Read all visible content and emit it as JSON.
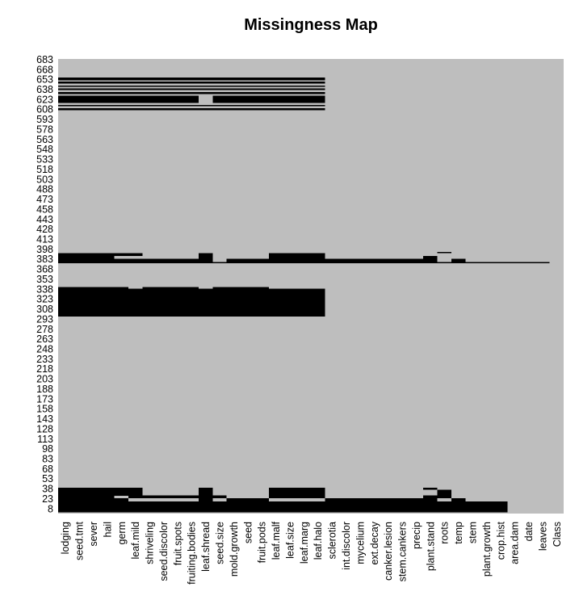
{
  "chart_data": {
    "type": "heatmap",
    "title": "Missingness Map",
    "xlabel": "",
    "ylabel": "",
    "colors": {
      "missing": "#000000",
      "observed": "#bebebe"
    },
    "columns": [
      "lodging",
      "seed.tmt",
      "sever",
      "hail",
      "germ",
      "leaf.mild",
      "shriveling",
      "seed.discolor",
      "fruit.spots",
      "fruiting.bodies",
      "leaf.shread",
      "seed.size",
      "mold.growth",
      "seed",
      "fruit.pods",
      "leaf.malf",
      "leaf.size",
      "leaf.marg",
      "leaf.halo",
      "sclerotia",
      "int.discolor",
      "mycelium",
      "ext.decay",
      "canker.lesion",
      "stem.cankers",
      "precip",
      "plant.stand",
      "roots",
      "temp",
      "stem",
      "plant.growth",
      "crop.hist",
      "area.dam",
      "date",
      "leaves",
      "Class"
    ],
    "row_count": 683,
    "y_ticks": [
      8,
      23,
      38,
      53,
      68,
      83,
      98,
      113,
      128,
      143,
      158,
      173,
      188,
      203,
      218,
      233,
      248,
      263,
      278,
      293,
      308,
      323,
      338,
      353,
      368,
      383,
      398,
      413,
      428,
      443,
      458,
      473,
      488,
      503,
      518,
      533,
      548,
      563,
      578,
      593,
      608,
      623,
      638,
      653,
      668,
      683
    ],
    "missing_blocks": [
      {
        "rows": [
          2,
          17
        ],
        "cols": [
          0,
          31
        ]
      },
      {
        "rows": [
          18,
          22
        ],
        "cols": [
          0,
          4
        ]
      },
      {
        "rows": [
          18,
          22
        ],
        "cols": [
          10,
          10
        ]
      },
      {
        "rows": [
          18,
          22
        ],
        "cols": [
          12,
          14
        ]
      },
      {
        "rows": [
          18,
          22
        ],
        "cols": [
          19,
          26
        ]
      },
      {
        "rows": [
          18,
          22
        ],
        "cols": [
          28,
          28
        ]
      },
      {
        "rows": [
          23,
          26
        ],
        "cols": [
          0,
          3
        ]
      },
      {
        "rows": [
          23,
          26
        ],
        "cols": [
          5,
          11
        ]
      },
      {
        "rows": [
          23,
          26
        ],
        "cols": [
          15,
          18
        ]
      },
      {
        "rows": [
          23,
          26
        ],
        "cols": [
          26,
          27
        ]
      },
      {
        "rows": [
          27,
          35
        ],
        "cols": [
          0,
          5
        ]
      },
      {
        "rows": [
          27,
          35
        ],
        "cols": [
          10,
          10
        ]
      },
      {
        "rows": [
          27,
          35
        ],
        "cols": [
          15,
          18
        ]
      },
      {
        "rows": [
          27,
          35
        ],
        "cols": [
          27,
          27
        ]
      },
      {
        "rows": [
          36,
          38
        ],
        "cols": [
          0,
          5
        ]
      },
      {
        "rows": [
          36,
          38
        ],
        "cols": [
          10,
          10
        ]
      },
      {
        "rows": [
          36,
          38
        ],
        "cols": [
          15,
          18
        ]
      },
      {
        "rows": [
          36,
          38
        ],
        "cols": [
          26,
          26
        ]
      },
      {
        "rows": [
          296,
          337
        ],
        "cols": [
          0,
          18
        ]
      },
      {
        "rows": [
          338,
          339
        ],
        "cols": [
          0,
          4
        ]
      },
      {
        "rows": [
          338,
          339
        ],
        "cols": [
          6,
          9
        ]
      },
      {
        "rows": [
          338,
          339
        ],
        "cols": [
          11,
          14
        ]
      },
      {
        "rows": [
          376,
          377
        ],
        "cols": [
          0,
          34
        ]
      },
      {
        "rows": [
          378,
          382
        ],
        "cols": [
          0,
          10
        ]
      },
      {
        "rows": [
          378,
          382
        ],
        "cols": [
          12,
          26
        ]
      },
      {
        "rows": [
          378,
          382
        ],
        "cols": [
          28,
          28
        ]
      },
      {
        "rows": [
          383,
          386
        ],
        "cols": [
          0,
          3
        ]
      },
      {
        "rows": [
          383,
          386
        ],
        "cols": [
          10,
          10
        ]
      },
      {
        "rows": [
          383,
          386
        ],
        "cols": [
          15,
          18
        ]
      },
      {
        "rows": [
          383,
          386
        ],
        "cols": [
          26,
          26
        ]
      },
      {
        "rows": [
          387,
          390
        ],
        "cols": [
          0,
          5
        ]
      },
      {
        "rows": [
          387,
          390
        ],
        "cols": [
          10,
          10
        ]
      },
      {
        "rows": [
          387,
          390
        ],
        "cols": [
          15,
          18
        ]
      },
      {
        "rows": [
          391,
          392
        ],
        "cols": [
          27,
          27
        ]
      },
      {
        "rows": [
          606,
          608
        ],
        "cols": [
          0,
          18
        ]
      },
      {
        "rows": [
          612,
          613
        ],
        "cols": [
          0,
          18
        ]
      },
      {
        "rows": [
          617,
          627
        ],
        "cols": [
          0,
          5
        ]
      },
      {
        "rows": [
          617,
          627
        ],
        "cols": [
          6,
          9
        ]
      },
      {
        "rows": [
          617,
          627
        ],
        "cols": [
          11,
          18
        ]
      },
      {
        "rows": [
          630,
          632
        ],
        "cols": [
          0,
          18
        ]
      },
      {
        "rows": [
          636,
          638
        ],
        "cols": [
          0,
          18
        ]
      },
      {
        "rows": [
          641,
          642
        ],
        "cols": [
          0,
          18
        ]
      },
      {
        "rows": [
          646,
          648
        ],
        "cols": [
          0,
          18
        ]
      },
      {
        "rows": [
          651,
          654
        ],
        "cols": [
          0,
          18
        ]
      }
    ]
  }
}
